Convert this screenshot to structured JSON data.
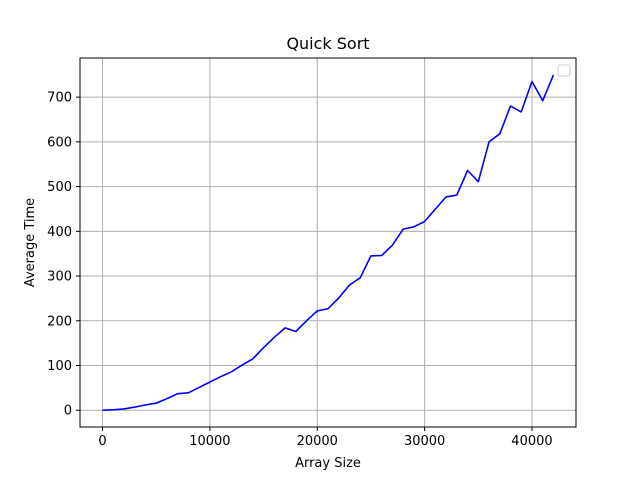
{
  "chart_data": {
    "type": "line",
    "title": "Quick Sort",
    "xlabel": "Array Size",
    "ylabel": "Average Time",
    "xlim": [
      -2100,
      44100
    ],
    "ylim": [
      -37.5,
      787.5
    ],
    "x_ticks": [
      0,
      10000,
      20000,
      30000,
      40000
    ],
    "y_ticks": [
      0,
      100,
      200,
      300,
      400,
      500,
      600,
      700
    ],
    "grid": true,
    "legend": {
      "placement": "top-right",
      "entries": []
    },
    "series": [
      {
        "color": "#0000ff",
        "x": [
          0,
          1000,
          2000,
          3000,
          4000,
          5000,
          6000,
          7000,
          8000,
          9000,
          10000,
          11000,
          12000,
          13000,
          14000,
          15000,
          16000,
          17000,
          18000,
          19000,
          20000,
          21000,
          22000,
          23000,
          24000,
          25000,
          26000,
          27000,
          28000,
          29000,
          30000,
          31000,
          32000,
          33000,
          34000,
          35000,
          36000,
          37000,
          38000,
          39000,
          40000,
          41000,
          42000
        ],
        "y": [
          0,
          1,
          3,
          7,
          12,
          16,
          26,
          37,
          39,
          51,
          63,
          75,
          86,
          101,
          115,
          140,
          163,
          184,
          176,
          200,
          222,
          227,
          251,
          280,
          296,
          345,
          346,
          369,
          405,
          410,
          422,
          450,
          477,
          481,
          536,
          511,
          600,
          618,
          680,
          667,
          735,
          692,
          750
        ]
      }
    ]
  }
}
